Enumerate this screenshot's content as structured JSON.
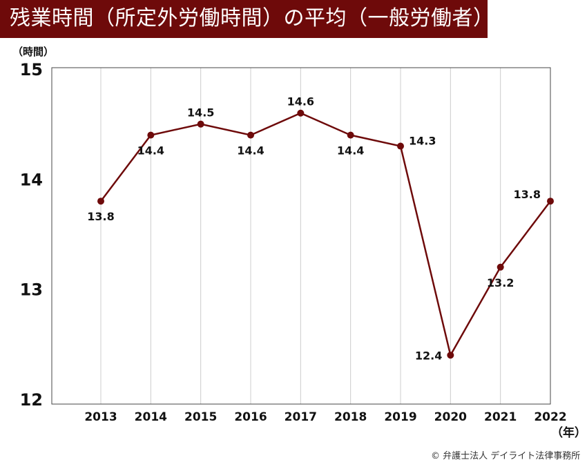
{
  "title": "残業時間（所定外労働時間）の平均（一般労働者）",
  "credit": "© 弁護士法人 デイライト法律事務所",
  "chart_data": {
    "type": "line",
    "title": "残業時間（所定外労働時間）の平均（一般労働者）",
    "ylabel": "（時間）",
    "xlabel": "（年）",
    "categories": [
      "2013",
      "2014",
      "2015",
      "2016",
      "2017",
      "2018",
      "2019",
      "2020",
      "2021",
      "2022"
    ],
    "values": [
      13.8,
      14.4,
      14.5,
      14.4,
      14.6,
      14.4,
      14.3,
      12.4,
      13.2,
      13.8
    ],
    "label_positions": [
      "below",
      "below",
      "above",
      "below",
      "above",
      "below",
      "right",
      "left",
      "below",
      "above-left"
    ],
    "ylim": [
      12,
      15
    ],
    "yticks": [
      "12",
      "13",
      "14",
      "15"
    ],
    "grid": "vertical",
    "color": "#6e0a0a"
  }
}
